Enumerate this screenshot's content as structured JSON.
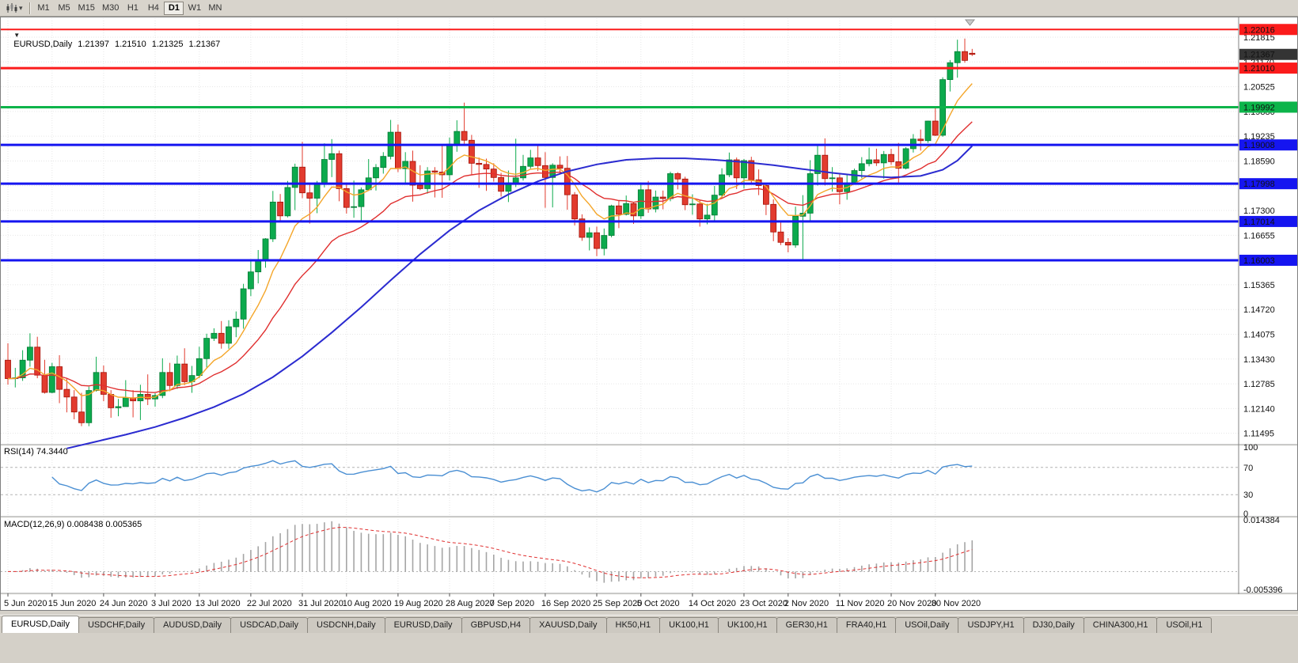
{
  "toolbar": {
    "timeframes": [
      "M1",
      "M5",
      "M15",
      "M30",
      "H1",
      "H4",
      "D1",
      "W1",
      "MN"
    ],
    "active_timeframe": "D1",
    "caret_glyph": "▾"
  },
  "chart_header": {
    "collapse_icon": "▼",
    "symbol_period": "EURUSD,Daily",
    "open": "1.21397",
    "high": "1.21510",
    "low": "1.21325",
    "close": "1.21367"
  },
  "indicators": {
    "rsi": {
      "title": "RSI(14) 74.3440",
      "scale_labels": [
        "100",
        "70",
        "30",
        "0"
      ]
    },
    "macd": {
      "title": "MACD(12,26,9) 0.008438 0.005365",
      "scale_top": "0.014384",
      "scale_bottom": "-0.005396"
    }
  },
  "colors": {
    "up_fill": "#0caa4d",
    "up_stroke": "#067a35",
    "down_fill": "#e23b2e",
    "down_stroke": "#a31208",
    "ma_fast": "#f4a62a",
    "ma_medium": "#e02f2f",
    "ma_slow": "#2b2bd0",
    "line_red": "#fb1b1b",
    "line_green": "#0cb44a",
    "line_blue": "#1515f0",
    "rsi_line": "#4a8fd3",
    "macd_hist": "#a5a5a5",
    "macd_signal": "#e02f2f",
    "bid_box": "#343434",
    "grid": "#e6e6e6",
    "level_dash": "#b4b4b4"
  },
  "chart_data": {
    "type": "candlestick",
    "symbol": "EURUSD",
    "period": "Daily",
    "y_range": [
      1.1122,
      1.2231
    ],
    "y_ticks": [
      "1.21815",
      "1.21170",
      "1.20525",
      "1.19880",
      "1.19235",
      "1.18590",
      "1.17945",
      "1.17300",
      "1.16655",
      "1.16010",
      "1.15365",
      "1.14720",
      "1.14075",
      "1.13430",
      "1.12785",
      "1.12140",
      "1.11495"
    ],
    "x_dates": [
      "5 Jun 2020",
      "15 Jun 2020",
      "24 Jun 2020",
      "3 Jul 2020",
      "13 Jul 2020",
      "22 Jul 2020",
      "31 Jul 2020",
      "10 Aug 2020",
      "19 Aug 2020",
      "28 Aug 2020",
      "7 Sep 2020",
      "16 Sep 2020",
      "25 Sep 2020",
      "5 Oct 2020",
      "14 Oct 2020",
      "23 Oct 2020",
      "2 Nov 2020",
      "11 Nov 2020",
      "20 Nov 2020",
      "30 Nov 2020"
    ],
    "x_date_indices": [
      0,
      6,
      13,
      20,
      26,
      33,
      40,
      46,
      53,
      60,
      66,
      73,
      80,
      86,
      93,
      100,
      106,
      113,
      120,
      126
    ],
    "bid": 1.21367,
    "bid_label": "1.21367",
    "horizontal_lines": [
      {
        "price": 1.22016,
        "label": "1.22016",
        "color": "red",
        "width": 2
      },
      {
        "price": 1.2101,
        "label": "1.21010",
        "color": "red",
        "width": 3
      },
      {
        "price": 1.19992,
        "label": "1.19992",
        "color": "green",
        "width": 3
      },
      {
        "price": 1.19008,
        "label": "1.19008",
        "color": "blue",
        "width": 3
      },
      {
        "price": 1.17998,
        "label": "1.17998",
        "color": "blue",
        "width": 3
      },
      {
        "price": 1.17014,
        "label": "1.17014",
        "color": "blue",
        "width": 3
      },
      {
        "price": 1.16003,
        "label": "1.16003",
        "color": "blue",
        "width": 3
      }
    ],
    "ma_fast_period": 8,
    "ma_medium_period": 20,
    "ma_slow_points": [
      [
        8,
        1.111
      ],
      [
        12,
        1.1128
      ],
      [
        16,
        1.1146
      ],
      [
        20,
        1.1166
      ],
      [
        24,
        1.119
      ],
      [
        28,
        1.1218
      ],
      [
        32,
        1.1252
      ],
      [
        36,
        1.1296
      ],
      [
        40,
        1.135
      ],
      [
        44,
        1.1412
      ],
      [
        48,
        1.1478
      ],
      [
        52,
        1.1548
      ],
      [
        56,
        1.1616
      ],
      [
        60,
        1.1678
      ],
      [
        64,
        1.173
      ],
      [
        68,
        1.1772
      ],
      [
        72,
        1.1806
      ],
      [
        76,
        1.1832
      ],
      [
        80,
        1.185
      ],
      [
        84,
        1.1862
      ],
      [
        88,
        1.1866
      ],
      [
        92,
        1.1866
      ],
      [
        96,
        1.1862
      ],
      [
        100,
        1.1856
      ],
      [
        104,
        1.1848
      ],
      [
        108,
        1.1838
      ],
      [
        112,
        1.1828
      ],
      [
        116,
        1.182
      ],
      [
        120,
        1.1816
      ],
      [
        124,
        1.182
      ],
      [
        127,
        1.1836
      ],
      [
        129,
        1.186
      ],
      [
        131,
        1.1898
      ]
    ],
    "rsi": {
      "period": 14,
      "current": 74.344,
      "levels": [
        70,
        30
      ],
      "range": [
        0,
        100
      ]
    },
    "macd": {
      "fast": 12,
      "slow": 26,
      "signal": 9,
      "current_macd": 0.008438,
      "current_signal": 0.005365,
      "range": [
        -0.005396,
        0.014384
      ]
    },
    "candles": [
      [
        1.134,
        1.1384,
        1.1276,
        1.1292
      ],
      [
        1.1292,
        1.132,
        1.1269,
        1.1294
      ],
      [
        1.1294,
        1.1366,
        1.1286,
        1.134
      ],
      [
        1.134,
        1.141,
        1.1323,
        1.1374
      ],
      [
        1.1374,
        1.1401,
        1.1293,
        1.1301
      ],
      [
        1.1301,
        1.1341,
        1.1253,
        1.1256
      ],
      [
        1.1256,
        1.1333,
        1.1254,
        1.1323
      ],
      [
        1.1323,
        1.1353,
        1.1228,
        1.1264
      ],
      [
        1.1264,
        1.1294,
        1.1204,
        1.1244
      ],
      [
        1.1244,
        1.1262,
        1.1186,
        1.1205
      ],
      [
        1.1205,
        1.1255,
        1.1168,
        1.1177
      ],
      [
        1.1177,
        1.1271,
        1.1168,
        1.1261
      ],
      [
        1.1261,
        1.1349,
        1.1258,
        1.1308
      ],
      [
        1.1308,
        1.1326,
        1.1233,
        1.1251
      ],
      [
        1.1251,
        1.1262,
        1.119,
        1.1216
      ],
      [
        1.1216,
        1.1239,
        1.1194,
        1.1219
      ],
      [
        1.1219,
        1.1288,
        1.1219,
        1.1242
      ],
      [
        1.1242,
        1.1262,
        1.1191,
        1.1234
      ],
      [
        1.1234,
        1.1276,
        1.1184,
        1.1251
      ],
      [
        1.1251,
        1.1303,
        1.1223,
        1.1239
      ],
      [
        1.1239,
        1.1254,
        1.1219,
        1.1248
      ],
      [
        1.1248,
        1.1345,
        1.1241,
        1.1308
      ],
      [
        1.1308,
        1.1333,
        1.1259,
        1.1274
      ],
      [
        1.1274,
        1.1352,
        1.1265,
        1.133
      ],
      [
        1.133,
        1.1371,
        1.1275,
        1.1284
      ],
      [
        1.1284,
        1.1325,
        1.1255,
        1.13
      ],
      [
        1.13,
        1.1375,
        1.1293,
        1.1344
      ],
      [
        1.1344,
        1.1409,
        1.1321,
        1.1397
      ],
      [
        1.1397,
        1.1423,
        1.139,
        1.141
      ],
      [
        1.141,
        1.1442,
        1.137,
        1.1384
      ],
      [
        1.1384,
        1.1444,
        1.137,
        1.1427
      ],
      [
        1.1427,
        1.1467,
        1.14,
        1.1447
      ],
      [
        1.1447,
        1.1539,
        1.1422,
        1.1526
      ],
      [
        1.1526,
        1.1601,
        1.1507,
        1.157
      ],
      [
        1.157,
        1.1627,
        1.154,
        1.1598
      ],
      [
        1.1598,
        1.1658,
        1.1581,
        1.1656
      ],
      [
        1.1656,
        1.1781,
        1.1648,
        1.1752
      ],
      [
        1.1752,
        1.1773,
        1.17,
        1.1716
      ],
      [
        1.1716,
        1.1807,
        1.1712,
        1.179
      ],
      [
        1.179,
        1.1852,
        1.1731,
        1.1843
      ],
      [
        1.1843,
        1.1909,
        1.1762,
        1.1776
      ],
      [
        1.1776,
        1.1797,
        1.1696,
        1.1762
      ],
      [
        1.1762,
        1.1807,
        1.1723,
        1.1802
      ],
      [
        1.1802,
        1.1905,
        1.179,
        1.1863
      ],
      [
        1.1863,
        1.1916,
        1.1817,
        1.1878
      ],
      [
        1.1878,
        1.1886,
        1.1754,
        1.1787
      ],
      [
        1.1787,
        1.1798,
        1.1722,
        1.1738
      ],
      [
        1.1738,
        1.1808,
        1.1711,
        1.174
      ],
      [
        1.174,
        1.179,
        1.1701,
        1.1784
      ],
      [
        1.1784,
        1.1864,
        1.1781,
        1.1815
      ],
      [
        1.1815,
        1.1851,
        1.1782,
        1.1842
      ],
      [
        1.1842,
        1.1882,
        1.1826,
        1.1871
      ],
      [
        1.1871,
        1.1966,
        1.1863,
        1.1934
      ],
      [
        1.1934,
        1.1954,
        1.183,
        1.1839
      ],
      [
        1.1839,
        1.1882,
        1.1801,
        1.1858
      ],
      [
        1.1858,
        1.1886,
        1.1753,
        1.1796
      ],
      [
        1.1796,
        1.1848,
        1.1783,
        1.1787
      ],
      [
        1.1787,
        1.1843,
        1.1774,
        1.1833
      ],
      [
        1.1833,
        1.1843,
        1.1764,
        1.183
      ],
      [
        1.183,
        1.1901,
        1.1763,
        1.1823
      ],
      [
        1.1823,
        1.192,
        1.1808,
        1.1903
      ],
      [
        1.1903,
        1.1965,
        1.1883,
        1.1936
      ],
      [
        1.1936,
        1.2011,
        1.1898,
        1.1913
      ],
      [
        1.1913,
        1.1927,
        1.1822,
        1.1853
      ],
      [
        1.1853,
        1.1868,
        1.1789,
        1.185
      ],
      [
        1.185,
        1.1865,
        1.1781,
        1.1838
      ],
      [
        1.1838,
        1.1853,
        1.1805,
        1.1816
      ],
      [
        1.1816,
        1.1828,
        1.1766,
        1.178
      ],
      [
        1.178,
        1.1834,
        1.1752,
        1.1802
      ],
      [
        1.1802,
        1.1917,
        1.1791,
        1.1815
      ],
      [
        1.1815,
        1.1875,
        1.1808,
        1.1845
      ],
      [
        1.1845,
        1.1888,
        1.1839,
        1.1867
      ],
      [
        1.1867,
        1.19,
        1.1833,
        1.1847
      ],
      [
        1.1847,
        1.1882,
        1.1737,
        1.1816
      ],
      [
        1.1816,
        1.1853,
        1.1738,
        1.1848
      ],
      [
        1.1848,
        1.1871,
        1.1827,
        1.184
      ],
      [
        1.184,
        1.1872,
        1.1732,
        1.1771
      ],
      [
        1.1771,
        1.1778,
        1.1691,
        1.1708
      ],
      [
        1.1708,
        1.172,
        1.1651,
        1.166
      ],
      [
        1.166,
        1.1686,
        1.1626,
        1.1672
      ],
      [
        1.1672,
        1.1688,
        1.1611,
        1.1631
      ],
      [
        1.1631,
        1.1683,
        1.1613,
        1.1665
      ],
      [
        1.1665,
        1.1745,
        1.166,
        1.1742
      ],
      [
        1.1742,
        1.1755,
        1.1684,
        1.172
      ],
      [
        1.172,
        1.1769,
        1.1717,
        1.1748
      ],
      [
        1.1748,
        1.1752,
        1.1695,
        1.1716
      ],
      [
        1.1716,
        1.1798,
        1.1708,
        1.1784
      ],
      [
        1.1784,
        1.1807,
        1.1724,
        1.1734
      ],
      [
        1.1734,
        1.1782,
        1.1725,
        1.1765
      ],
      [
        1.1765,
        1.1782,
        1.1733,
        1.1761
      ],
      [
        1.1761,
        1.1831,
        1.1754,
        1.1826
      ],
      [
        1.1826,
        1.183,
        1.1785,
        1.1812
      ],
      [
        1.1812,
        1.1818,
        1.1731,
        1.1745
      ],
      [
        1.1745,
        1.1772,
        1.1719,
        1.1747
      ],
      [
        1.1747,
        1.1758,
        1.1688,
        1.1708
      ],
      [
        1.1708,
        1.1747,
        1.1694,
        1.1718
      ],
      [
        1.1718,
        1.1794,
        1.1703,
        1.177
      ],
      [
        1.177,
        1.184,
        1.1761,
        1.1823
      ],
      [
        1.1823,
        1.1881,
        1.1817,
        1.1862
      ],
      [
        1.1862,
        1.1868,
        1.1786,
        1.1815
      ],
      [
        1.1815,
        1.1864,
        1.1787,
        1.186
      ],
      [
        1.186,
        1.187,
        1.18,
        1.181
      ],
      [
        1.181,
        1.1837,
        1.177,
        1.1795
      ],
      [
        1.1795,
        1.18,
        1.1718,
        1.1746
      ],
      [
        1.1746,
        1.1759,
        1.165,
        1.1674
      ],
      [
        1.1674,
        1.1704,
        1.164,
        1.1647
      ],
      [
        1.1647,
        1.1658,
        1.1621,
        1.164
      ],
      [
        1.164,
        1.174,
        1.1633,
        1.1715
      ],
      [
        1.1715,
        1.177,
        1.1603,
        1.1723
      ],
      [
        1.1723,
        1.1861,
        1.1702,
        1.1826
      ],
      [
        1.1826,
        1.1898,
        1.1795,
        1.1874
      ],
      [
        1.1874,
        1.1918,
        1.1795,
        1.1813
      ],
      [
        1.1813,
        1.1843,
        1.1779,
        1.1815
      ],
      [
        1.1815,
        1.1824,
        1.1746,
        1.1779
      ],
      [
        1.1779,
        1.1823,
        1.1758,
        1.1802
      ],
      [
        1.1802,
        1.1839,
        1.1799,
        1.1834
      ],
      [
        1.1834,
        1.1869,
        1.1814,
        1.1852
      ],
      [
        1.1852,
        1.1894,
        1.1845,
        1.1862
      ],
      [
        1.1862,
        1.1891,
        1.1846,
        1.1854
      ],
      [
        1.1854,
        1.1885,
        1.1813,
        1.1876
      ],
      [
        1.1876,
        1.1891,
        1.1849,
        1.1857
      ],
      [
        1.1857,
        1.1906,
        1.18,
        1.184
      ],
      [
        1.184,
        1.1895,
        1.1837,
        1.1891
      ],
      [
        1.1891,
        1.1929,
        1.1881,
        1.1916
      ],
      [
        1.1916,
        1.1941,
        1.1886,
        1.1912
      ],
      [
        1.1912,
        1.1964,
        1.1906,
        1.1963
      ],
      [
        1.1963,
        1.1998,
        1.1924,
        1.1926
      ],
      [
        1.1926,
        1.2077,
        1.1922,
        1.2071
      ],
      [
        1.2071,
        1.2122,
        1.204,
        1.2115
      ],
      [
        1.2115,
        1.2175,
        1.2076,
        1.2144
      ],
      [
        1.2144,
        1.2178,
        1.2115,
        1.2121
      ],
      [
        1.21397,
        1.2151,
        1.21325,
        1.21367
      ]
    ]
  },
  "tabs": [
    "EURUSD,Daily",
    "USDCHF,Daily",
    "AUDUSD,Daily",
    "USDCAD,Daily",
    "USDCNH,Daily",
    "EURUSD,Daily",
    "GBPUSD,H4",
    "XAUUSD,Daily",
    "HK50,H1",
    "UK100,H1",
    "UK100,H1",
    "GER30,H1",
    "FRA40,H1",
    "USOil,Daily",
    "USDJPY,H1",
    "DJ30,Daily",
    "CHINA300,H1",
    "USOil,H1"
  ],
  "active_tab": 0
}
